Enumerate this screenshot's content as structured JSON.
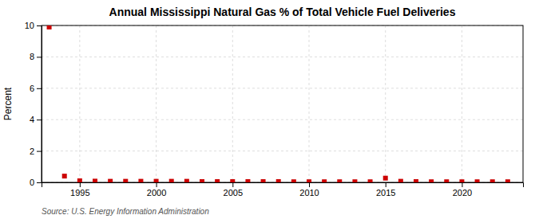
{
  "chart_data": {
    "type": "scatter",
    "title": "Annual Mississippi Natural Gas % of Total Vehicle Fuel Deliveries",
    "y_label": "Percent",
    "annotations": [
      "Source: U.S. Energy Information Administration"
    ],
    "x": [
      1993,
      1994,
      1995,
      1996,
      1997,
      1998,
      1999,
      2000,
      2001,
      2002,
      2003,
      2004,
      2005,
      2006,
      2007,
      2008,
      2009,
      2010,
      2011,
      2012,
      2013,
      2014,
      2015,
      2016,
      2017,
      2018,
      2019,
      2020,
      2021,
      2022,
      2023
    ],
    "values": [
      9.9,
      0.4,
      0.1,
      0.08,
      0.07,
      0.07,
      0.07,
      0.07,
      0.07,
      0.07,
      0.05,
      0.05,
      0.05,
      0.05,
      0.05,
      0.05,
      0.04,
      0.04,
      0.04,
      0.04,
      0.04,
      0.04,
      0.27,
      0.07,
      0.05,
      0.04,
      0.04,
      0.04,
      0.04,
      0.04,
      0.04
    ],
    "color": "#cc0000",
    "marker": "square",
    "xlim": [
      1992.5,
      2024
    ],
    "xticks": [
      1995,
      2000,
      2005,
      2010,
      2015,
      2020
    ],
    "ylim": [
      0,
      10
    ],
    "yticks": [
      0,
      2,
      4,
      6,
      8,
      10
    ],
    "grid": true
  }
}
